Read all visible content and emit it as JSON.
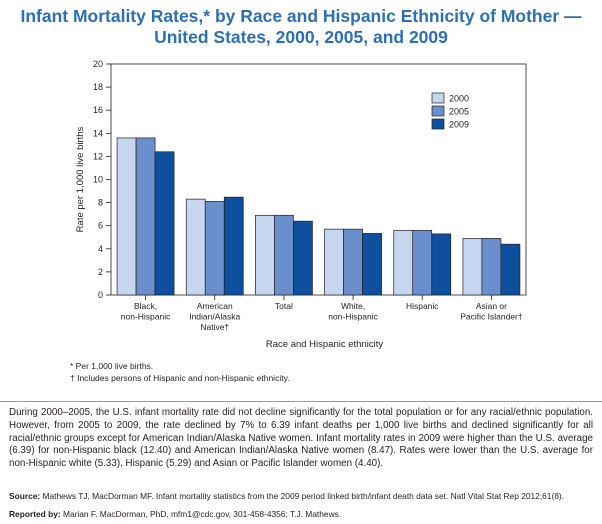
{
  "title_line1": "Infant Mortality Rates,* by Race and Hispanic Ethnicity of Mother —",
  "title_line2": "United States, 2000, 2005, and 2009",
  "chart_data": {
    "type": "bar",
    "title": "Infant Mortality Rates,* by Race and Hispanic Ethnicity of Mother — United States, 2000, 2005, and 2009",
    "xlabel": "Race and Hispanic ethnicity",
    "ylabel": "Rate per 1,000 live births",
    "ylim": [
      0,
      20
    ],
    "yticks": [
      "0",
      "2",
      "4",
      "6",
      "8",
      "10",
      "12",
      "14",
      "16",
      "18",
      "20"
    ],
    "grid": false,
    "legend_position": "top-right",
    "categories": [
      [
        "Black,",
        "non-Hispanic"
      ],
      [
        "American",
        "Indian/Alaska",
        "Native†"
      ],
      [
        "Total"
      ],
      [
        "White,",
        "non-Hispanic"
      ],
      [
        "Hispanic"
      ],
      [
        "Asian or",
        "Pacific Islander†"
      ]
    ],
    "series": [
      {
        "name": "2000",
        "color": "#c5d6ee",
        "values": [
          13.6,
          8.3,
          6.9,
          5.7,
          5.6,
          4.9
        ]
      },
      {
        "name": "2005",
        "color": "#6b8fcc",
        "values": [
          13.6,
          8.1,
          6.9,
          5.7,
          5.6,
          4.9
        ]
      },
      {
        "name": "2009",
        "color": "#0e4f9e",
        "values": [
          12.4,
          8.47,
          6.39,
          5.33,
          5.29,
          4.4
        ]
      }
    ]
  },
  "footnotes": {
    "star": "* Per 1,000 live births.",
    "dagger": "† Includes persons of Hispanic and non-Hispanic ethnicity."
  },
  "summary": "During 2000–2005, the U.S. infant mortality rate did not decline significantly for the total population or for any racial/ethnic population. However, from 2005 to 2009, the rate declined by 7% to 6.39 infant deaths per 1,000 live births and declined significantly for all racial/ethnic groups except for American Indian/Alaska Native women. Infant mortality rates in 2009 were higher than the U.S. average (6.39) for non-Hispanic black (12.40) and American Indian/Alaska Native women (8.47). Rates were lower than the U.S. average for non-Hispanic white (5.33), Hispanic (5.29) and Asian or Pacific Islander women (4.40).",
  "source": {
    "label": "Source:",
    "text": " Mathews TJ, MacDorman MF. Infant mortality statistics from the 2009 period linked birth/infant death data set. Natl Vital Stat Rep 2012;61(8)."
  },
  "reported": {
    "label": "Reported by:",
    "text": " Marian F. MacDorman, PhD, mfm1@cdc.gov, 301-458-4356; T.J. Mathews."
  }
}
